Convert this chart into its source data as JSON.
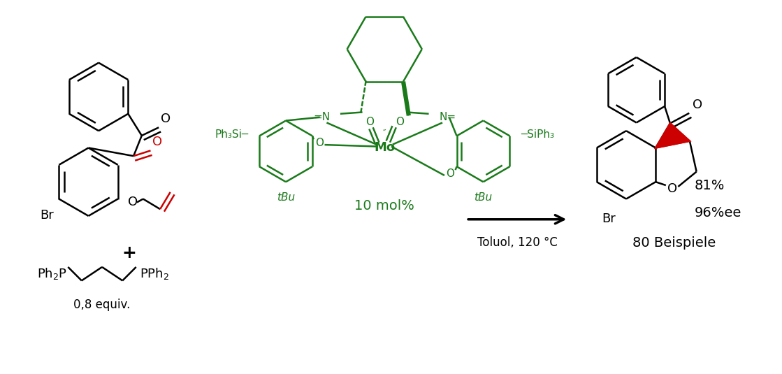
{
  "background_color": "#ffffff",
  "fig_width": 11.19,
  "fig_height": 5.35,
  "mol_color": "#000000",
  "catalyst_color": "#1a7a1a",
  "red_color": "#cc0000",
  "catalyst_label1": "10 mol%",
  "reaction_conditions": "Toluol, 120 °C",
  "yield_text1": "81%",
  "yield_text2": "96%ee",
  "yield_text3": "80 Beispiele",
  "plus_sign": "+",
  "equiv_text": "0,8 equiv."
}
